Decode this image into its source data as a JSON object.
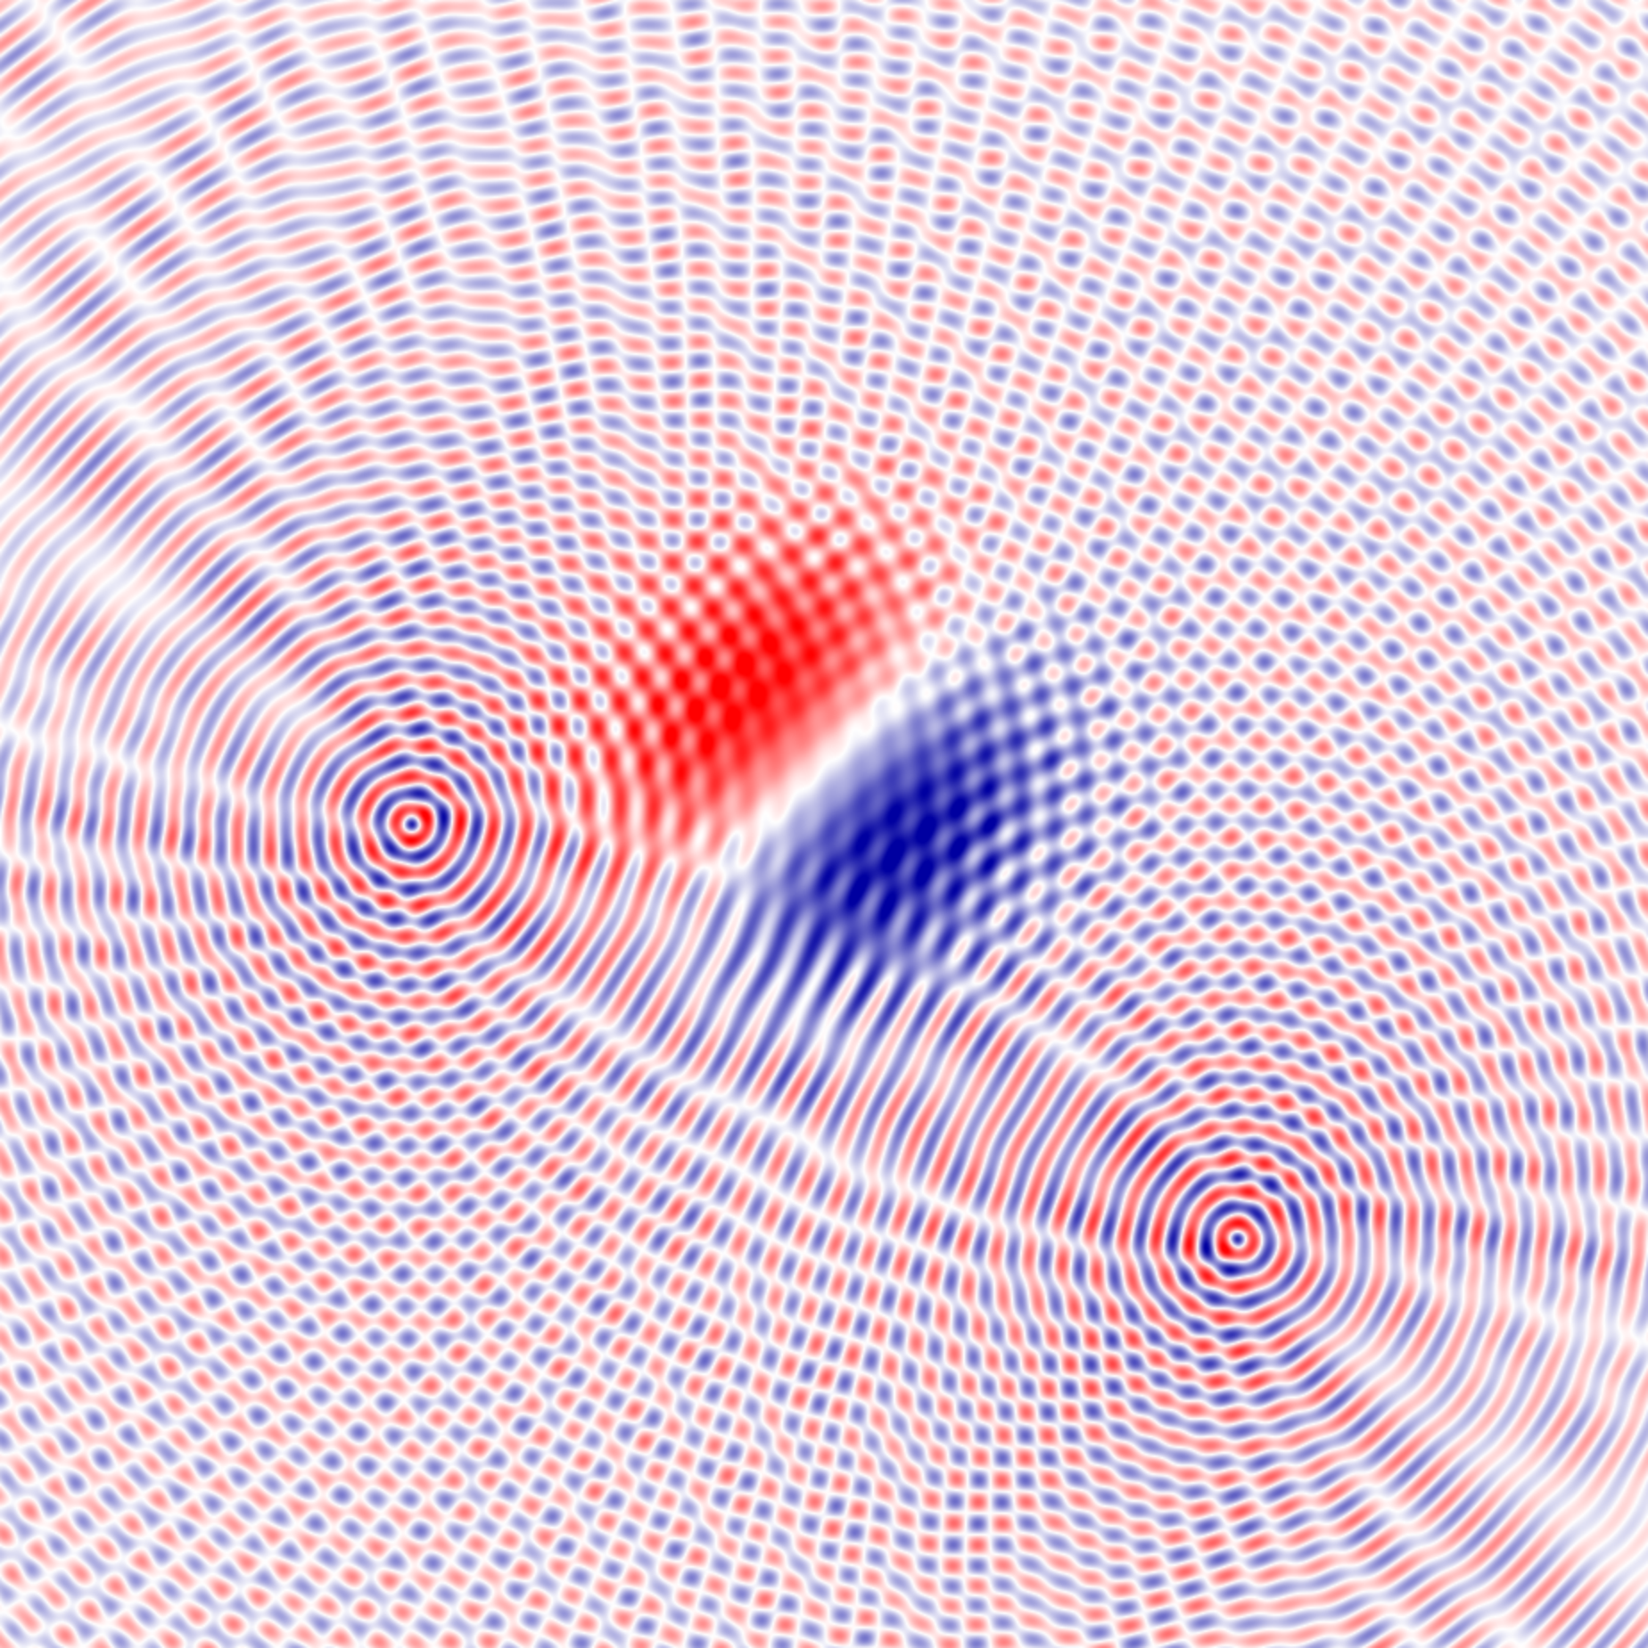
{
  "figure": {
    "kind": "interference-field",
    "colormap": {
      "negative": "#0000a0",
      "zero": "#ffffff",
      "positive": "#ff0000"
    },
    "sources": [
      {
        "name": "left-source",
        "sign": -1
      },
      {
        "name": "right-source",
        "sign": -1
      }
    ],
    "central_dipole": {
      "positive_lobe": "upper-left",
      "negative_lobe": "lower-right"
    }
  }
}
